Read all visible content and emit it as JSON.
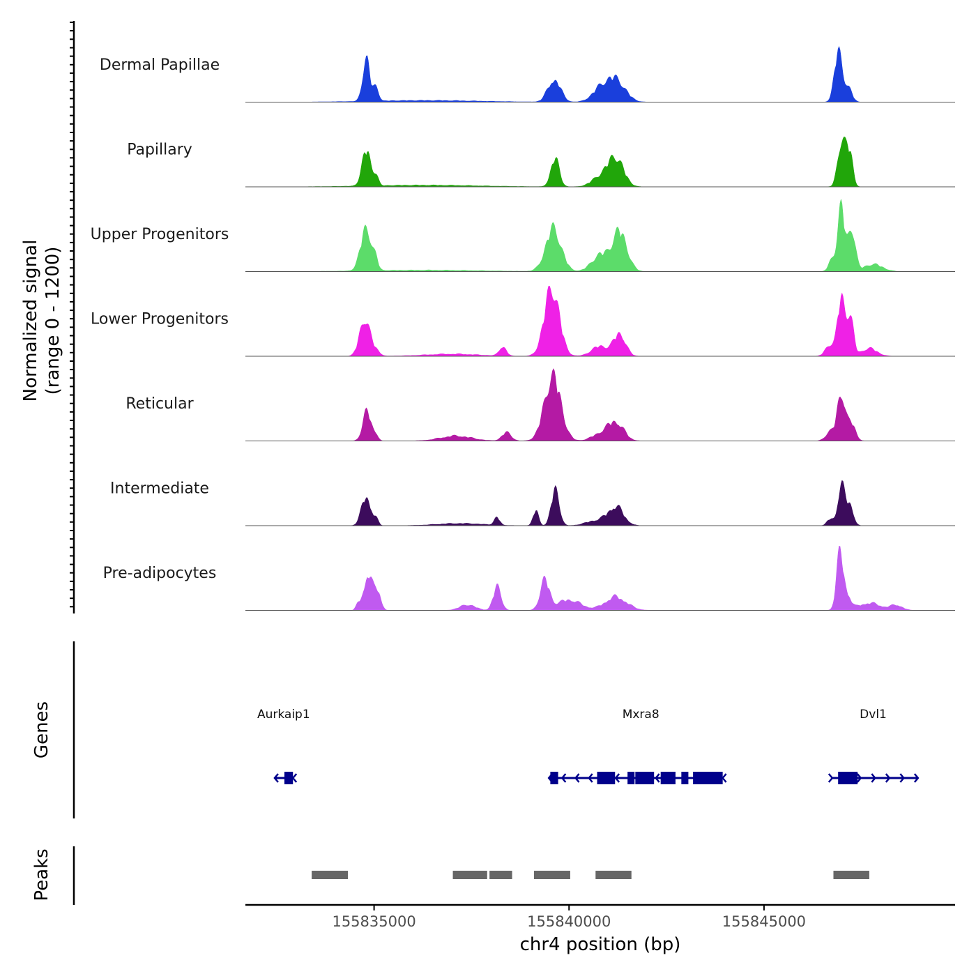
{
  "chart_data": {
    "type": "area",
    "chromosome": "chr4",
    "xlabel": "chr4 position (bp)",
    "xlim": [
      155831700,
      155849900
    ],
    "xticks": [
      155835000,
      155840000,
      155845000
    ],
    "xtick_labels": [
      "155835000",
      "155840000",
      "155845000"
    ],
    "signal": {
      "ylabel_line1": "Normalized signal",
      "ylabel_line2": "(range 0 - 1200)",
      "ylim": [
        0,
        1200
      ],
      "tracks": [
        {
          "name": "Dermal Papillae",
          "color": "#1a3fdc",
          "peaks": [
            [
              155834800,
              790,
              90
            ],
            [
              155835050,
              240,
              70
            ],
            [
              155839620,
              410,
              160
            ],
            [
              155841200,
              390,
              240
            ],
            [
              155840800,
              210,
              220
            ],
            [
              155846900,
              870,
              100
            ],
            [
              155847150,
              280,
              100
            ],
            [
              155836300,
              30,
              1400
            ]
          ]
        },
        {
          "name": "Papillary",
          "color": "#21a60a",
          "peaks": [
            [
              155834800,
              640,
              110
            ],
            [
              155835050,
              200,
              60
            ],
            [
              155839640,
              500,
              110
            ],
            [
              155841200,
              510,
              200
            ],
            [
              155840800,
              170,
              220
            ],
            [
              155847000,
              880,
              100
            ],
            [
              155847200,
              560,
              80
            ],
            [
              155836300,
              30,
              1400
            ]
          ]
        },
        {
          "name": "Upper Progenitors",
          "color": "#5cdc6a",
          "peaks": [
            [
              155834800,
              770,
              140
            ],
            [
              155835050,
              120,
              60
            ],
            [
              155839600,
              760,
              200
            ],
            [
              155841300,
              700,
              190
            ],
            [
              155840800,
              290,
              220
            ],
            [
              155846980,
              1150,
              90
            ],
            [
              155847250,
              780,
              90
            ],
            [
              155847800,
              130,
              240
            ],
            [
              155846750,
              210,
              90
            ],
            [
              155836300,
              25,
              1400
            ]
          ]
        },
        {
          "name": "Lower Progenitors",
          "color": "#ef21e6",
          "peaks": [
            [
              155834760,
              680,
              130
            ],
            [
              155835050,
              100,
              100
            ],
            [
              155839560,
              1230,
              190
            ],
            [
              155838300,
              170,
              90
            ],
            [
              155841300,
              400,
              150
            ],
            [
              155840800,
              180,
              220
            ],
            [
              155846980,
              1010,
              90
            ],
            [
              155847200,
              720,
              90
            ],
            [
              155846700,
              210,
              120
            ],
            [
              155847700,
              140,
              200
            ],
            [
              155837000,
              40,
              700
            ]
          ]
        },
        {
          "name": "Reticular",
          "color": "#b41aa4",
          "peaks": [
            [
              155834820,
              520,
              110
            ],
            [
              155835050,
              100,
              60
            ],
            [
              155839580,
              1160,
              210
            ],
            [
              155838400,
              150,
              120
            ],
            [
              155841200,
              330,
              200
            ],
            [
              155840800,
              120,
              220
            ],
            [
              155846980,
              870,
              100
            ],
            [
              155847250,
              310,
              100
            ],
            [
              155846700,
              160,
              120
            ],
            [
              155837100,
              90,
              400
            ]
          ]
        },
        {
          "name": "Intermediate",
          "color": "#3c0c5c",
          "peaks": [
            [
              155834800,
              520,
              120
            ],
            [
              155835050,
              100,
              60
            ],
            [
              155839650,
              670,
              100
            ],
            [
              155839150,
              270,
              70
            ],
            [
              155838150,
              140,
              70
            ],
            [
              155841200,
              330,
              200
            ],
            [
              155840700,
              90,
              260
            ],
            [
              155846980,
              700,
              90
            ],
            [
              155847200,
              380,
              90
            ],
            [
              155846700,
              120,
              80
            ],
            [
              155837200,
              40,
              600
            ]
          ]
        },
        {
          "name": "Pre-adipocytes",
          "color": "#c05af0",
          "peaks": [
            [
              155834850,
              660,
              110
            ],
            [
              155835100,
              330,
              80
            ],
            [
              155834600,
              110,
              60
            ],
            [
              155838160,
              430,
              100
            ],
            [
              155837400,
              100,
              200
            ],
            [
              155839380,
              520,
              120
            ],
            [
              155840000,
              190,
              300
            ],
            [
              155841200,
              240,
              280
            ],
            [
              155846950,
              1000,
              90
            ],
            [
              155847150,
              220,
              90
            ],
            [
              155847700,
              130,
              300
            ],
            [
              155848400,
              90,
              150
            ]
          ]
        }
      ]
    },
    "genes": {
      "ylabel": "Genes",
      "items": [
        {
          "name": "Aurkaip1",
          "label_x": 155832680,
          "start": 155832450,
          "end": 155832920,
          "exons": [
            [
              155832700,
              155832920
            ]
          ],
          "direction": "-"
        },
        {
          "name": "Mxra8",
          "label_x": 155841840,
          "start": 155839480,
          "end": 155843940,
          "exons": [
            [
              155839520,
              155839720
            ],
            [
              155840720,
              155841180
            ],
            [
              155841500,
              155841680
            ],
            [
              155841700,
              155842180
            ],
            [
              155842350,
              155842730
            ],
            [
              155842880,
              155843060
            ],
            [
              155843180,
              155843940
            ]
          ],
          "direction": "-"
        },
        {
          "name": "Dvl1",
          "label_x": 155847800,
          "start": 155846750,
          "end": 155848950,
          "exons": [
            [
              155846900,
              155847400
            ]
          ],
          "direction": "+"
        }
      ]
    },
    "peaks": {
      "ylabel": "Peaks",
      "regions": [
        [
          155833400,
          155834330
        ],
        [
          155837020,
          155837900
        ],
        [
          155837960,
          155838540
        ],
        [
          155839100,
          155840030
        ],
        [
          155840680,
          155841600
        ],
        [
          155846780,
          155847700
        ]
      ]
    }
  }
}
